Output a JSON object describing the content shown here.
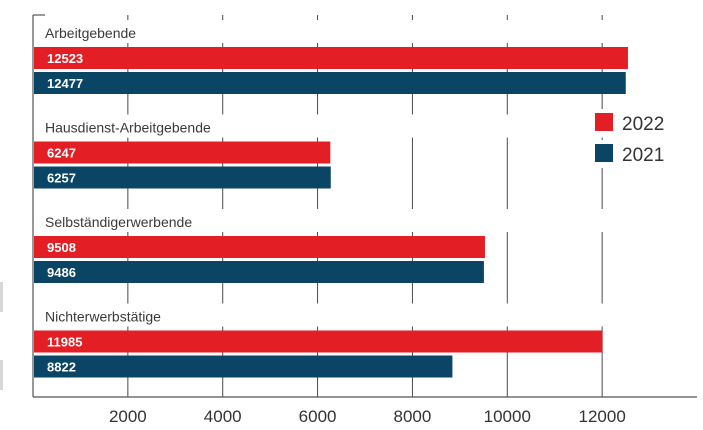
{
  "chart_data": {
    "type": "bar",
    "orientation": "horizontal",
    "categories": [
      "Arbeitgebende",
      "Hausdienst-Arbeitgebende",
      "Selbständigerwerbende",
      "Nichterwerbstätige"
    ],
    "series": [
      {
        "name": "2022",
        "color": "#e31e24",
        "values": [
          12523,
          6247,
          9508,
          11985
        ],
        "labels": [
          "12523",
          "6247",
          "9508",
          "11985"
        ]
      },
      {
        "name": "2021",
        "color": "#0b4565",
        "values": [
          12477,
          6257,
          9486,
          8822
        ],
        "labels": [
          "12477",
          "6257",
          "9486",
          "8822"
        ]
      }
    ],
    "x_ticks": [
      2000,
      4000,
      6000,
      8000,
      10000,
      12000
    ],
    "x_tick_labels": [
      "2000",
      "4000",
      "6000",
      "8000",
      "10000",
      "12000"
    ],
    "xlim": [
      0,
      14000
    ],
    "grid": "vertical",
    "legend_position": "right"
  }
}
